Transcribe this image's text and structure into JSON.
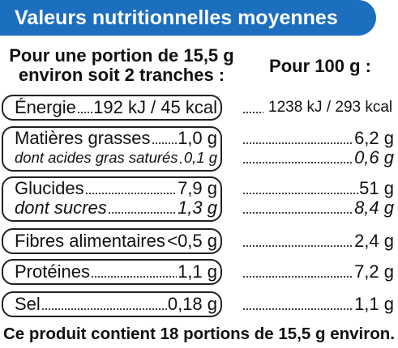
{
  "banner": {
    "title": "Valeurs nutritionnelles moyennes",
    "color": "#1c6ebf"
  },
  "headers": {
    "per_portion_line1": "Pour une portion de 15,5 g",
    "per_portion_line2": "environ soit 2 tranches :",
    "per_100g": "Pour 100 g :"
  },
  "rows": [
    {
      "label": "Énergie",
      "portion": "192 kJ / 45 kcal",
      "per100": "1238 kJ / 293 kcal"
    },
    {
      "label": "Matières grasses",
      "portion": "1,0 g",
      "per100": "6,2 g"
    },
    {
      "label": "dont acides gras saturés",
      "portion": "0,1 g",
      "per100": "0,6 g"
    },
    {
      "label": "Glucides",
      "portion": "7,9 g",
      "per100": "51 g"
    },
    {
      "label": "dont sucres",
      "portion": "1,3 g",
      "per100": "8,4 g"
    },
    {
      "label": "Fibres alimentaires",
      "portion": "<0,5 g",
      "per100": "2,4 g"
    },
    {
      "label": "Protéines",
      "portion": "1,1 g",
      "per100": "7,2 g"
    },
    {
      "label": "Sel",
      "portion": "0,18 g",
      "per100": "1,1 g"
    }
  ],
  "footer": "Ce produit contient 18 portions de 15,5 g environ."
}
